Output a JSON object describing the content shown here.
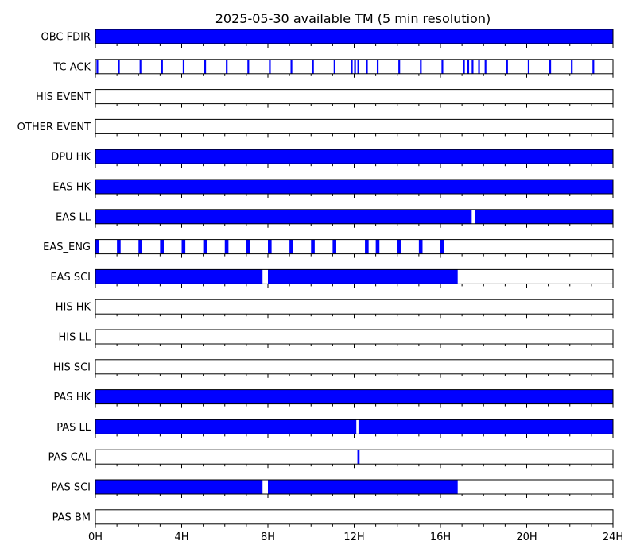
{
  "chart_data": {
    "type": "timeline",
    "title": "2025-05-30 available TM (5 min resolution)",
    "x_unit": "hours",
    "xlim": [
      0,
      24
    ],
    "x_ticks": [
      0,
      4,
      8,
      12,
      16,
      20,
      24
    ],
    "x_tick_labels": [
      "0H",
      "4H",
      "8H",
      "12H",
      "16H",
      "20H",
      "24H"
    ],
    "minor_tick_step": 1,
    "bar_color": "#0000ff",
    "rows": [
      {
        "label": "OBC FDIR",
        "segments": [
          [
            0,
            24
          ]
        ]
      },
      {
        "label": "TC ACK",
        "segments": [
          [
            0.05,
            0.13
          ],
          [
            1.05,
            1.13
          ],
          [
            2.05,
            2.13
          ],
          [
            3.05,
            3.13
          ],
          [
            4.05,
            4.13
          ],
          [
            5.05,
            5.13
          ],
          [
            6.05,
            6.13
          ],
          [
            7.05,
            7.13
          ],
          [
            8.05,
            8.13
          ],
          [
            9.05,
            9.13
          ],
          [
            10.05,
            10.13
          ],
          [
            11.05,
            11.13
          ],
          [
            11.85,
            11.93
          ],
          [
            12.0,
            12.08
          ],
          [
            12.15,
            12.23
          ],
          [
            12.55,
            12.63
          ],
          [
            13.05,
            13.13
          ],
          [
            14.05,
            14.13
          ],
          [
            15.05,
            15.13
          ],
          [
            16.05,
            16.13
          ],
          [
            17.05,
            17.13
          ],
          [
            17.25,
            17.33
          ],
          [
            17.45,
            17.53
          ],
          [
            17.75,
            17.83
          ],
          [
            18.05,
            18.13
          ],
          [
            19.05,
            19.13
          ],
          [
            20.05,
            20.13
          ],
          [
            21.05,
            21.13
          ],
          [
            22.05,
            22.13
          ],
          [
            23.05,
            23.13
          ]
        ]
      },
      {
        "label": "HIS EVENT",
        "segments": []
      },
      {
        "label": "OTHER EVENT",
        "segments": []
      },
      {
        "label": "DPU HK",
        "segments": [
          [
            0,
            24
          ]
        ]
      },
      {
        "label": "EAS HK",
        "segments": [
          [
            0,
            24
          ]
        ]
      },
      {
        "label": "EAS LL",
        "segments": [
          [
            0,
            17.45
          ],
          [
            17.6,
            24
          ]
        ]
      },
      {
        "label": "EAS_ENG",
        "segments": [
          [
            0,
            0.17
          ],
          [
            1.0,
            1.17
          ],
          [
            2.0,
            2.17
          ],
          [
            3.0,
            3.17
          ],
          [
            4.0,
            4.17
          ],
          [
            5.0,
            5.17
          ],
          [
            6.0,
            6.17
          ],
          [
            7.0,
            7.17
          ],
          [
            8.0,
            8.17
          ],
          [
            9.0,
            9.17
          ],
          [
            10.0,
            10.17
          ],
          [
            11.0,
            11.17
          ],
          [
            12.5,
            12.67
          ],
          [
            13.0,
            13.17
          ],
          [
            14.0,
            14.17
          ],
          [
            15.0,
            15.17
          ],
          [
            16.0,
            16.17
          ]
        ]
      },
      {
        "label": "EAS SCI",
        "segments": [
          [
            0,
            7.75
          ],
          [
            8.0,
            16.8
          ]
        ]
      },
      {
        "label": "HIS HK",
        "segments": []
      },
      {
        "label": "HIS LL",
        "segments": []
      },
      {
        "label": "HIS SCI",
        "segments": []
      },
      {
        "label": "PAS HK",
        "segments": [
          [
            0,
            24
          ]
        ]
      },
      {
        "label": "PAS LL",
        "segments": [
          [
            0,
            12.1
          ],
          [
            12.2,
            24
          ]
        ]
      },
      {
        "label": "PAS CAL",
        "segments": [
          [
            12.15,
            12.25
          ]
        ]
      },
      {
        "label": "PAS SCI",
        "segments": [
          [
            0,
            7.75
          ],
          [
            8.0,
            16.8
          ]
        ]
      },
      {
        "label": "PAS BM",
        "segments": []
      }
    ]
  }
}
